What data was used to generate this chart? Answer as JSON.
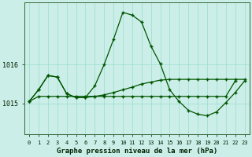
{
  "xlabel": "Graphe pression niveau de la mer (hPa)",
  "background_color": "#cceee8",
  "grid_color": "#99ddcc",
  "line_color": "#005500",
  "x_ticks": [
    0,
    1,
    2,
    3,
    4,
    5,
    6,
    7,
    8,
    9,
    10,
    11,
    12,
    13,
    14,
    15,
    16,
    17,
    18,
    19,
    20,
    21,
    22,
    23
  ],
  "ylim": [
    1014.2,
    1017.6
  ],
  "yticks": [
    1015,
    1016
  ],
  "line2": [
    1015.05,
    1015.35,
    1015.72,
    1015.68,
    1015.25,
    1015.15,
    1015.15,
    1015.45,
    1016.0,
    1016.65,
    1017.35,
    1017.28,
    1017.1,
    1016.48,
    1016.02,
    1015.35,
    1015.05,
    1014.82,
    1014.72,
    1014.68,
    1014.78,
    1015.02,
    1015.28,
    1015.58
  ],
  "line1": [
    1015.05,
    1015.35,
    1015.72,
    1015.68,
    1015.25,
    1015.15,
    1015.15,
    1015.18,
    1015.22,
    1015.28,
    1015.35,
    1015.42,
    1015.5,
    1015.55,
    1015.6,
    1015.62,
    1015.62,
    1015.62,
    1015.62,
    1015.62,
    1015.62,
    1015.62,
    1015.62,
    1015.62
  ],
  "line3_x": [
    0,
    1,
    2,
    3,
    4,
    5,
    6,
    7,
    8,
    9,
    10,
    11,
    12,
    13,
    14,
    15,
    16,
    17,
    18,
    19,
    20,
    21,
    22
  ],
  "line3": [
    1015.05,
    1015.18,
    1015.18,
    1015.18,
    1015.18,
    1015.18,
    1015.18,
    1015.18,
    1015.18,
    1015.18,
    1015.18,
    1015.18,
    1015.18,
    1015.18,
    1015.18,
    1015.18,
    1015.18,
    1015.18,
    1015.18,
    1015.18,
    1015.18,
    1015.18,
    1015.58
  ]
}
